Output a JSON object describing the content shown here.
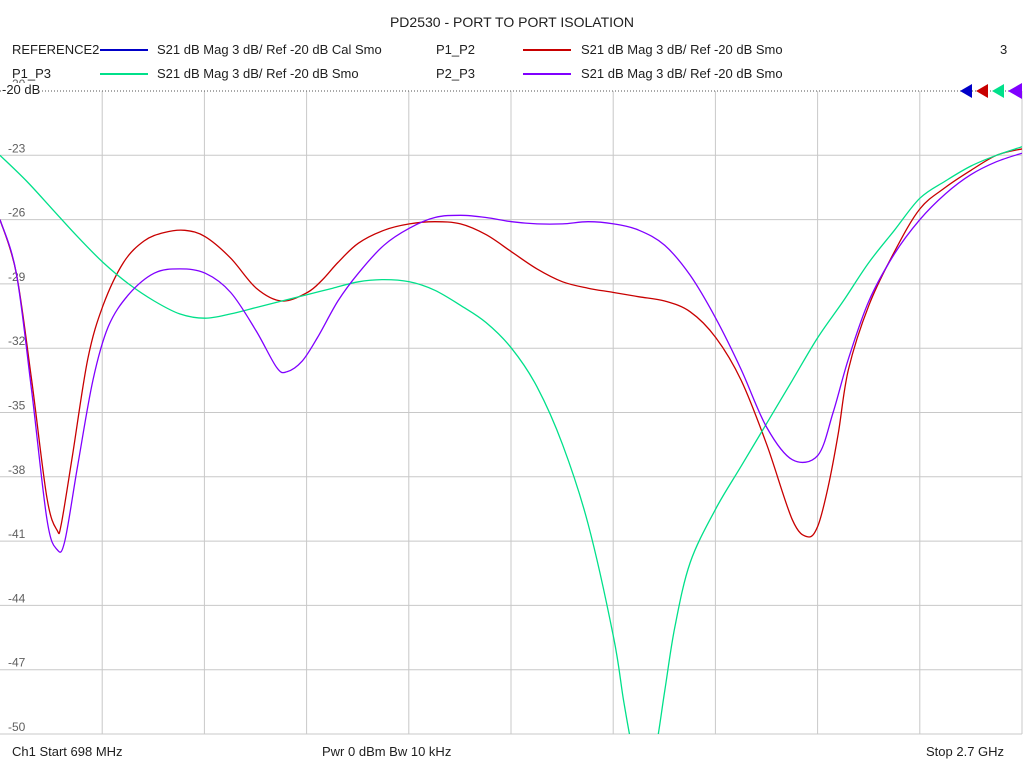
{
  "title": "PD2530 - PORT TO PORT ISOLATION",
  "trace_count": "3",
  "ref_label": "-20 dB",
  "legend": [
    {
      "name": "REFERENCE2",
      "desc": "S21  dB Mag  3 dB/ Ref -20 dB  Cal Smo",
      "color": "#0000c8"
    },
    {
      "name": "P1_P2",
      "desc": "S21  dB Mag  3 dB/ Ref -20 dB  Smo",
      "color": "#c80000"
    },
    {
      "name": "P1_P3",
      "desc": "S21  dB Mag  3 dB/ Ref -20 dB  Smo",
      "color": "#00e08a"
    },
    {
      "name": "P2_P3",
      "desc": "S21  dB Mag  3 dB/ Ref -20 dB  Smo",
      "color": "#8000ff"
    }
  ],
  "footer": {
    "start": "Ch1  Start  698 MHz",
    "power": "Pwr  0 dBm  Bw  10 kHz",
    "stop": "Stop  2.7 GHz"
  },
  "chart_data": {
    "type": "line",
    "title": "PD2530 - PORT TO PORT ISOLATION",
    "xlabel": "",
    "ylabel": "",
    "xlim": [
      698,
      2700
    ],
    "ylim": [
      -50,
      -20
    ],
    "y_ticks": [
      -20,
      -23,
      -26,
      -29,
      -32,
      -35,
      -38,
      -41,
      -44,
      -47,
      -50
    ],
    "y_tick_labels": [
      "-20",
      "-23",
      "-26",
      "-29",
      "-32",
      "-35",
      "-38",
      "-41",
      "-44",
      "-47",
      "-50"
    ],
    "x_divisions": 10,
    "grid": true,
    "series": [
      {
        "name": "P1_P2",
        "color": "#c80000",
        "x": [
          698,
          730,
          760,
          790,
          810,
          818,
          840,
          870,
          900,
          940,
          980,
          1020,
          1060,
          1100,
          1150,
          1200,
          1250,
          1300,
          1330,
          1360,
          1400,
          1450,
          1500,
          1550,
          1600,
          1650,
          1700,
          1750,
          1800,
          1850,
          1900,
          1950,
          2000,
          2050,
          2100,
          2150,
          2200,
          2250,
          2280,
          2300,
          2320,
          2340,
          2360,
          2400,
          2450,
          2500,
          2550,
          2600,
          2650,
          2700
        ],
        "y": [
          -26.0,
          -28.5,
          -33.5,
          -39.0,
          -40.5,
          -40.2,
          -37.0,
          -32.5,
          -30.0,
          -28.0,
          -27.0,
          -26.6,
          -26.5,
          -26.8,
          -27.8,
          -29.2,
          -29.8,
          -29.4,
          -28.8,
          -28.0,
          -27.1,
          -26.5,
          -26.2,
          -26.1,
          -26.2,
          -26.7,
          -27.5,
          -28.3,
          -28.9,
          -29.2,
          -29.4,
          -29.6,
          -29.8,
          -30.3,
          -31.5,
          -33.5,
          -36.5,
          -40.0,
          -40.8,
          -40.3,
          -38.5,
          -36.0,
          -33.0,
          -30.0,
          -27.5,
          -25.5,
          -24.5,
          -23.7,
          -23.0,
          -22.7
        ]
      },
      {
        "name": "P1_P3",
        "color": "#00e08a",
        "x": [
          698,
          750,
          800,
          850,
          900,
          950,
          1000,
          1050,
          1100,
          1150,
          1200,
          1250,
          1300,
          1350,
          1400,
          1450,
          1500,
          1550,
          1600,
          1650,
          1700,
          1750,
          1800,
          1850,
          1900,
          1920,
          1940,
          1960,
          1980,
          2000,
          2020,
          2050,
          2100,
          2150,
          2200,
          2250,
          2300,
          2350,
          2400,
          2450,
          2500,
          2550,
          2600,
          2650,
          2700
        ],
        "y": [
          -23.0,
          -24.2,
          -25.5,
          -26.8,
          -28.0,
          -29.0,
          -29.8,
          -30.4,
          -30.6,
          -30.4,
          -30.1,
          -29.8,
          -29.5,
          -29.2,
          -28.9,
          -28.8,
          -28.9,
          -29.3,
          -30.0,
          -30.8,
          -32.0,
          -33.8,
          -36.5,
          -40.2,
          -45.5,
          -48.5,
          -51.0,
          -52.0,
          -51.0,
          -48.0,
          -45.0,
          -42.0,
          -39.5,
          -37.5,
          -35.5,
          -33.5,
          -31.5,
          -29.8,
          -28.0,
          -26.5,
          -25.0,
          -24.2,
          -23.5,
          -23.0,
          -22.6
        ]
      },
      {
        "name": "P2_P3",
        "color": "#8000ff",
        "x": [
          698,
          730,
          760,
          790,
          810,
          825,
          850,
          880,
          910,
          950,
          1000,
          1050,
          1100,
          1150,
          1200,
          1240,
          1260,
          1290,
          1320,
          1360,
          1400,
          1450,
          1500,
          1550,
          1600,
          1650,
          1700,
          1750,
          1800,
          1850,
          1900,
          1950,
          2000,
          2050,
          2100,
          2150,
          2200,
          2250,
          2300,
          2330,
          2360,
          2400,
          2450,
          2500,
          2550,
          2600,
          2650,
          2700
        ],
        "y": [
          -26.0,
          -28.5,
          -34.0,
          -40.0,
          -41.4,
          -41.0,
          -37.5,
          -33.5,
          -31.0,
          -29.5,
          -28.5,
          -28.3,
          -28.5,
          -29.4,
          -31.2,
          -32.9,
          -33.1,
          -32.6,
          -31.5,
          -29.8,
          -28.5,
          -27.2,
          -26.4,
          -25.9,
          -25.8,
          -25.9,
          -26.1,
          -26.2,
          -26.2,
          -26.1,
          -26.2,
          -26.5,
          -27.2,
          -28.6,
          -30.6,
          -33.0,
          -35.7,
          -37.2,
          -37.0,
          -35.0,
          -32.5,
          -29.8,
          -27.6,
          -26.0,
          -24.8,
          -23.9,
          -23.3,
          -22.9
        ]
      }
    ]
  }
}
